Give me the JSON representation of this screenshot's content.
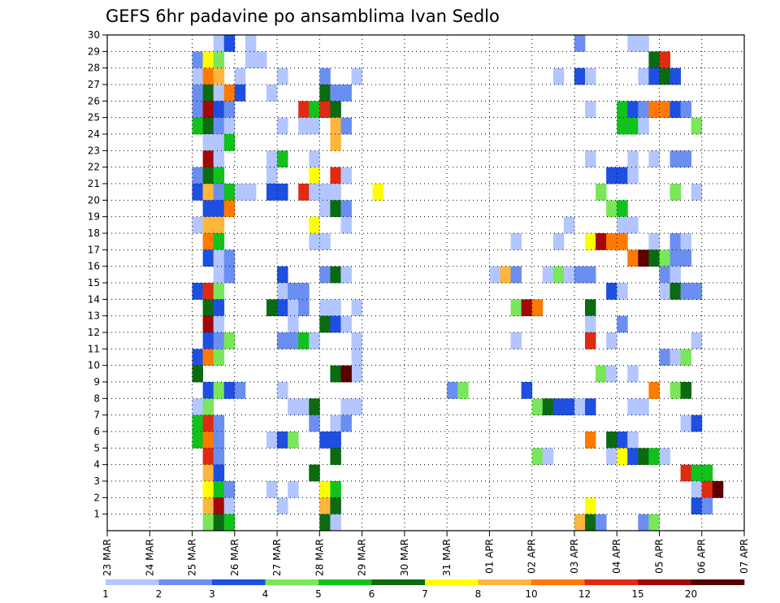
{
  "chart_data": {
    "type": "heatmap",
    "title": "GEFS 6hr padavine po ansamblima Ivan Sedlo",
    "x_ticks": [
      "23 MAR",
      "24 MAR",
      "25 MAR",
      "26 MAR",
      "27 MAR",
      "28 MAR",
      "29 MAR",
      "30 MAR",
      "31 MAR",
      "01 APR",
      "02 APR",
      "03 APR",
      "04 APR",
      "05 APR",
      "06 APR",
      "07 APR"
    ],
    "y_ticks": [
      1,
      2,
      3,
      4,
      5,
      6,
      7,
      8,
      9,
      10,
      11,
      12,
      13,
      14,
      15,
      16,
      17,
      18,
      19,
      20,
      21,
      22,
      23,
      24,
      25,
      26,
      27,
      28,
      29,
      30
    ],
    "ylim": [
      0,
      30
    ],
    "x_unit": "6-hour step from 23 MAR 00Z",
    "grid": true,
    "colorbar": {
      "labels": [
        "1",
        "2",
        "3",
        "4",
        "5",
        "6",
        "7",
        "8",
        "10",
        "12",
        "15",
        "20"
      ],
      "colors": [
        "#b3c6ff",
        "#6b8ff0",
        "#1e4fe0",
        "#7ae65a",
        "#12c21c",
        "#0c6b10",
        "#ffff00",
        "#ffb63d",
        "#ff7a00",
        "#e02a12",
        "#a30808",
        "#5a0000"
      ]
    },
    "cells": [
      [
        10,
        30,
        0
      ],
      [
        11,
        30,
        2
      ],
      [
        13,
        30,
        0
      ],
      [
        44,
        30,
        1
      ],
      [
        49,
        30,
        0
      ],
      [
        50,
        30,
        0
      ],
      [
        8,
        29,
        1
      ],
      [
        9,
        29,
        6
      ],
      [
        10,
        29,
        3
      ],
      [
        13,
        29,
        0
      ],
      [
        14,
        29,
        0
      ],
      [
        51,
        29,
        5
      ],
      [
        52,
        29,
        9
      ],
      [
        8,
        28,
        0
      ],
      [
        9,
        28,
        8
      ],
      [
        10,
        28,
        7
      ],
      [
        12,
        28,
        0
      ],
      [
        16,
        28,
        0
      ],
      [
        20,
        28,
        1
      ],
      [
        23,
        28,
        0
      ],
      [
        42,
        28,
        0
      ],
      [
        44,
        28,
        2
      ],
      [
        45,
        28,
        0
      ],
      [
        50,
        28,
        0
      ],
      [
        51,
        28,
        2
      ],
      [
        52,
        28,
        5
      ],
      [
        53,
        28,
        2
      ],
      [
        8,
        27,
        1
      ],
      [
        9,
        27,
        5
      ],
      [
        10,
        27,
        0
      ],
      [
        11,
        27,
        8
      ],
      [
        12,
        27,
        2
      ],
      [
        15,
        27,
        0
      ],
      [
        20,
        27,
        5
      ],
      [
        21,
        27,
        1
      ],
      [
        22,
        27,
        1
      ],
      [
        8,
        26,
        1
      ],
      [
        9,
        26,
        10
      ],
      [
        10,
        26,
        2
      ],
      [
        11,
        26,
        1
      ],
      [
        18,
        26,
        9
      ],
      [
        19,
        26,
        4
      ],
      [
        20,
        26,
        9
      ],
      [
        21,
        26,
        5
      ],
      [
        45,
        26,
        0
      ],
      [
        48,
        26,
        4
      ],
      [
        49,
        26,
        2
      ],
      [
        50,
        26,
        1
      ],
      [
        51,
        26,
        8
      ],
      [
        52,
        26,
        8
      ],
      [
        53,
        26,
        2
      ],
      [
        54,
        26,
        1
      ],
      [
        8,
        25,
        4
      ],
      [
        9,
        25,
        5
      ],
      [
        10,
        25,
        1
      ],
      [
        11,
        25,
        0
      ],
      [
        16,
        25,
        0
      ],
      [
        18,
        25,
        0
      ],
      [
        19,
        25,
        0
      ],
      [
        21,
        25,
        7
      ],
      [
        22,
        25,
        1
      ],
      [
        48,
        25,
        4
      ],
      [
        49,
        25,
        4
      ],
      [
        50,
        25,
        0
      ],
      [
        55,
        25,
        3
      ],
      [
        9,
        24,
        0
      ],
      [
        10,
        24,
        0
      ],
      [
        11,
        24,
        4
      ],
      [
        21,
        24,
        7
      ],
      [
        9,
        23,
        10
      ],
      [
        10,
        23,
        0
      ],
      [
        15,
        23,
        0
      ],
      [
        16,
        23,
        4
      ],
      [
        19,
        23,
        0
      ],
      [
        45,
        23,
        0
      ],
      [
        49,
        23,
        0
      ],
      [
        51,
        23,
        0
      ],
      [
        53,
        23,
        1
      ],
      [
        54,
        23,
        1
      ],
      [
        8,
        22,
        1
      ],
      [
        9,
        22,
        5
      ],
      [
        10,
        22,
        4
      ],
      [
        15,
        22,
        0
      ],
      [
        19,
        22,
        6
      ],
      [
        21,
        22,
        9
      ],
      [
        22,
        22,
        0
      ],
      [
        47,
        22,
        2
      ],
      [
        48,
        22,
        2
      ],
      [
        49,
        22,
        0
      ],
      [
        8,
        21,
        2
      ],
      [
        9,
        21,
        7
      ],
      [
        10,
        21,
        1
      ],
      [
        11,
        21,
        4
      ],
      [
        12,
        21,
        0
      ],
      [
        13,
        21,
        0
      ],
      [
        15,
        21,
        2
      ],
      [
        16,
        21,
        2
      ],
      [
        18,
        21,
        9
      ],
      [
        19,
        21,
        0
      ],
      [
        20,
        21,
        0
      ],
      [
        21,
        21,
        0
      ],
      [
        25,
        21,
        6
      ],
      [
        46,
        21,
        3
      ],
      [
        53,
        21,
        3
      ],
      [
        55,
        21,
        0
      ],
      [
        9,
        20,
        2
      ],
      [
        10,
        20,
        2
      ],
      [
        11,
        20,
        8
      ],
      [
        20,
        20,
        0
      ],
      [
        21,
        20,
        5
      ],
      [
        22,
        20,
        1
      ],
      [
        47,
        20,
        3
      ],
      [
        48,
        20,
        4
      ],
      [
        8,
        19,
        0
      ],
      [
        9,
        19,
        7
      ],
      [
        10,
        19,
        7
      ],
      [
        19,
        19,
        6
      ],
      [
        22,
        19,
        0
      ],
      [
        43,
        19,
        0
      ],
      [
        48,
        19,
        0
      ],
      [
        49,
        19,
        0
      ],
      [
        9,
        18,
        8
      ],
      [
        10,
        18,
        4
      ],
      [
        19,
        18,
        0
      ],
      [
        20,
        18,
        0
      ],
      [
        38,
        18,
        0
      ],
      [
        42,
        18,
        0
      ],
      [
        45,
        18,
        6
      ],
      [
        46,
        18,
        10
      ],
      [
        47,
        18,
        8
      ],
      [
        48,
        18,
        8
      ],
      [
        51,
        18,
        0
      ],
      [
        53,
        18,
        1
      ],
      [
        54,
        18,
        0
      ],
      [
        9,
        17,
        2
      ],
      [
        10,
        17,
        0
      ],
      [
        11,
        17,
        1
      ],
      [
        49,
        17,
        8
      ],
      [
        50,
        17,
        11
      ],
      [
        51,
        17,
        5
      ],
      [
        52,
        17,
        3
      ],
      [
        53,
        17,
        1
      ],
      [
        54,
        17,
        1
      ],
      [
        10,
        16,
        0
      ],
      [
        11,
        16,
        1
      ],
      [
        16,
        16,
        2
      ],
      [
        20,
        16,
        1
      ],
      [
        21,
        16,
        5
      ],
      [
        22,
        16,
        0
      ],
      [
        36,
        16,
        0
      ],
      [
        37,
        16,
        7
      ],
      [
        38,
        16,
        1
      ],
      [
        41,
        16,
        0
      ],
      [
        42,
        16,
        3
      ],
      [
        43,
        16,
        0
      ],
      [
        44,
        16,
        1
      ],
      [
        45,
        16,
        1
      ],
      [
        52,
        16,
        1
      ],
      [
        53,
        16,
        0
      ],
      [
        8,
        15,
        2
      ],
      [
        9,
        15,
        9
      ],
      [
        10,
        15,
        3
      ],
      [
        16,
        15,
        0
      ],
      [
        17,
        15,
        1
      ],
      [
        18,
        15,
        1
      ],
      [
        47,
        15,
        2
      ],
      [
        48,
        15,
        0
      ],
      [
        52,
        15,
        0
      ],
      [
        53,
        15,
        5
      ],
      [
        54,
        15,
        1
      ],
      [
        55,
        15,
        1
      ],
      [
        9,
        14,
        5
      ],
      [
        10,
        14,
        2
      ],
      [
        15,
        14,
        5
      ],
      [
        16,
        14,
        2
      ],
      [
        17,
        14,
        0
      ],
      [
        18,
        14,
        1
      ],
      [
        20,
        14,
        0
      ],
      [
        21,
        14,
        0
      ],
      [
        23,
        14,
        0
      ],
      [
        38,
        14,
        3
      ],
      [
        39,
        14,
        10
      ],
      [
        40,
        14,
        8
      ],
      [
        45,
        14,
        5
      ],
      [
        9,
        13,
        10
      ],
      [
        10,
        13,
        0
      ],
      [
        17,
        13,
        0
      ],
      [
        20,
        13,
        5
      ],
      [
        21,
        13,
        2
      ],
      [
        22,
        13,
        0
      ],
      [
        45,
        13,
        0
      ],
      [
        48,
        13,
        1
      ],
      [
        9,
        12,
        2
      ],
      [
        10,
        12,
        1
      ],
      [
        11,
        12,
        3
      ],
      [
        16,
        12,
        1
      ],
      [
        17,
        12,
        1
      ],
      [
        18,
        12,
        4
      ],
      [
        19,
        12,
        0
      ],
      [
        23,
        12,
        0
      ],
      [
        38,
        12,
        0
      ],
      [
        45,
        12,
        9
      ],
      [
        47,
        12,
        0
      ],
      [
        55,
        12,
        0
      ],
      [
        8,
        11,
        2
      ],
      [
        9,
        11,
        8
      ],
      [
        10,
        11,
        3
      ],
      [
        23,
        11,
        0
      ],
      [
        52,
        11,
        1
      ],
      [
        53,
        11,
        0
      ],
      [
        54,
        11,
        3
      ],
      [
        8,
        10,
        5
      ],
      [
        23,
        10,
        0
      ],
      [
        21,
        10,
        5
      ],
      [
        22,
        10,
        11
      ],
      [
        46,
        10,
        3
      ],
      [
        47,
        10,
        0
      ],
      [
        49,
        10,
        0
      ],
      [
        9,
        9,
        2
      ],
      [
        10,
        9,
        3
      ],
      [
        11,
        9,
        2
      ],
      [
        12,
        9,
        1
      ],
      [
        16,
        9,
        0
      ],
      [
        32,
        9,
        1
      ],
      [
        33,
        9,
        3
      ],
      [
        39,
        9,
        2
      ],
      [
        51,
        9,
        8
      ],
      [
        53,
        9,
        3
      ],
      [
        54,
        9,
        5
      ],
      [
        8,
        8,
        0
      ],
      [
        9,
        8,
        3
      ],
      [
        17,
        8,
        0
      ],
      [
        18,
        8,
        0
      ],
      [
        19,
        8,
        5
      ],
      [
        22,
        8,
        0
      ],
      [
        23,
        8,
        0
      ],
      [
        40,
        8,
        3
      ],
      [
        41,
        8,
        5
      ],
      [
        42,
        8,
        2
      ],
      [
        43,
        8,
        2
      ],
      [
        44,
        8,
        0
      ],
      [
        45,
        8,
        2
      ],
      [
        49,
        8,
        0
      ],
      [
        50,
        8,
        0
      ],
      [
        8,
        7,
        4
      ],
      [
        9,
        7,
        9
      ],
      [
        10,
        7,
        1
      ],
      [
        19,
        7,
        1
      ],
      [
        21,
        7,
        0
      ],
      [
        22,
        7,
        1
      ],
      [
        54,
        7,
        0
      ],
      [
        55,
        7,
        2
      ],
      [
        8,
        6,
        4
      ],
      [
        9,
        6,
        8
      ],
      [
        10,
        6,
        1
      ],
      [
        15,
        6,
        0
      ],
      [
        16,
        6,
        2
      ],
      [
        17,
        6,
        3
      ],
      [
        20,
        6,
        2
      ],
      [
        21,
        6,
        2
      ],
      [
        45,
        6,
        8
      ],
      [
        47,
        6,
        5
      ],
      [
        48,
        6,
        2
      ],
      [
        49,
        6,
        0
      ],
      [
        9,
        5,
        9
      ],
      [
        10,
        5,
        1
      ],
      [
        21,
        5,
        5
      ],
      [
        40,
        5,
        3
      ],
      [
        41,
        5,
        0
      ],
      [
        47,
        5,
        0
      ],
      [
        48,
        5,
        6
      ],
      [
        49,
        5,
        2
      ],
      [
        50,
        5,
        5
      ],
      [
        51,
        5,
        4
      ],
      [
        52,
        5,
        0
      ],
      [
        9,
        4,
        7
      ],
      [
        10,
        4,
        2
      ],
      [
        19,
        4,
        5
      ],
      [
        54,
        4,
        9
      ],
      [
        55,
        4,
        4
      ],
      [
        56,
        4,
        4
      ],
      [
        9,
        3,
        6
      ],
      [
        10,
        3,
        4
      ],
      [
        11,
        3,
        1
      ],
      [
        15,
        3,
        0
      ],
      [
        17,
        3,
        0
      ],
      [
        20,
        3,
        6
      ],
      [
        21,
        3,
        4
      ],
      [
        55,
        3,
        0
      ],
      [
        56,
        3,
        9
      ],
      [
        57,
        3,
        11
      ],
      [
        9,
        2,
        7
      ],
      [
        10,
        2,
        10
      ],
      [
        11,
        2,
        0
      ],
      [
        16,
        2,
        0
      ],
      [
        20,
        2,
        7
      ],
      [
        21,
        2,
        5
      ],
      [
        45,
        2,
        6
      ],
      [
        55,
        2,
        2
      ],
      [
        56,
        2,
        1
      ],
      [
        9,
        1,
        3
      ],
      [
        10,
        1,
        5
      ],
      [
        11,
        1,
        4
      ],
      [
        20,
        1,
        5
      ],
      [
        21,
        1,
        0
      ],
      [
        44,
        1,
        7
      ],
      [
        45,
        1,
        5
      ],
      [
        46,
        1,
        1
      ],
      [
        50,
        1,
        1
      ],
      [
        51,
        1,
        3
      ]
    ]
  }
}
